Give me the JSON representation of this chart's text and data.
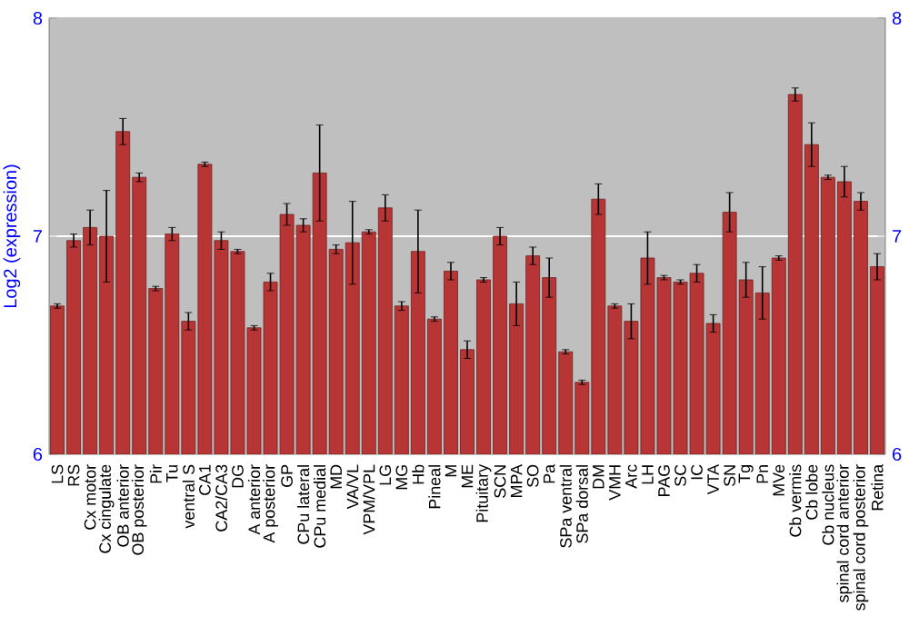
{
  "chart_data": {
    "type": "bar",
    "ylabel": "Log2 (expression)",
    "categories": [
      "LS",
      "RS",
      "Cx motor",
      "Cx cingulate",
      "OB anterior",
      "OB posterior",
      "Pir",
      "Tu",
      "ventral S",
      "CA1",
      "CA2/CA3",
      "DG",
      "A anterior",
      "A posterior",
      "GP",
      "CPu lateral",
      "CPu medial",
      "MD",
      "VA/VL",
      "VPM/VPL",
      "LG",
      "MG",
      "Hb",
      "Pineal",
      "M",
      "ME",
      "Pituitary",
      "SCN",
      "MPA",
      "SO",
      "Pa",
      "SPa ventral",
      "SPa dorsal",
      "DM",
      "VMH",
      "Arc",
      "LH",
      "PAG",
      "SC",
      "IC",
      "VTA",
      "SN",
      "Tg",
      "Pn",
      "MVe",
      "Cb vermis",
      "Cb lobe",
      "Cb nucleus",
      "spinal cord anterior",
      "spinal cord posterior",
      "Retina"
    ],
    "values": [
      6.68,
      6.98,
      7.04,
      7.0,
      7.48,
      7.27,
      6.76,
      7.01,
      6.61,
      7.33,
      6.98,
      6.93,
      6.58,
      6.79,
      7.1,
      7.05,
      7.29,
      6.94,
      6.97,
      7.02,
      7.13,
      6.68,
      6.93,
      6.62,
      6.84,
      6.48,
      6.8,
      7.0,
      6.69,
      6.91,
      6.81,
      6.47,
      6.33,
      7.17,
      6.68,
      6.61,
      6.9,
      6.81,
      6.79,
      6.83,
      6.6,
      7.11,
      6.8,
      6.74,
      6.9,
      7.65,
      7.42,
      7.27,
      7.25,
      7.16,
      6.86
    ],
    "errors": [
      0.01,
      0.03,
      0.08,
      0.21,
      0.06,
      0.02,
      0.01,
      0.03,
      0.04,
      0.01,
      0.04,
      0.01,
      0.01,
      0.04,
      0.05,
      0.03,
      0.22,
      0.02,
      0.19,
      0.01,
      0.06,
      0.02,
      0.19,
      0.01,
      0.04,
      0.04,
      0.01,
      0.04,
      0.1,
      0.04,
      0.09,
      0.01,
      0.01,
      0.07,
      0.01,
      0.08,
      0.12,
      0.01,
      0.01,
      0.04,
      0.04,
      0.09,
      0.08,
      0.12,
      0.01,
      0.03,
      0.1,
      0.01,
      0.07,
      0.04,
      0.06
    ],
    "color": "#b83535",
    "ylim": [
      6,
      8
    ],
    "yticks": [
      6,
      7,
      8
    ],
    "y2lim": [
      6,
      8
    ],
    "y2ticks": [
      6,
      7,
      8
    ],
    "grid": "y"
  }
}
